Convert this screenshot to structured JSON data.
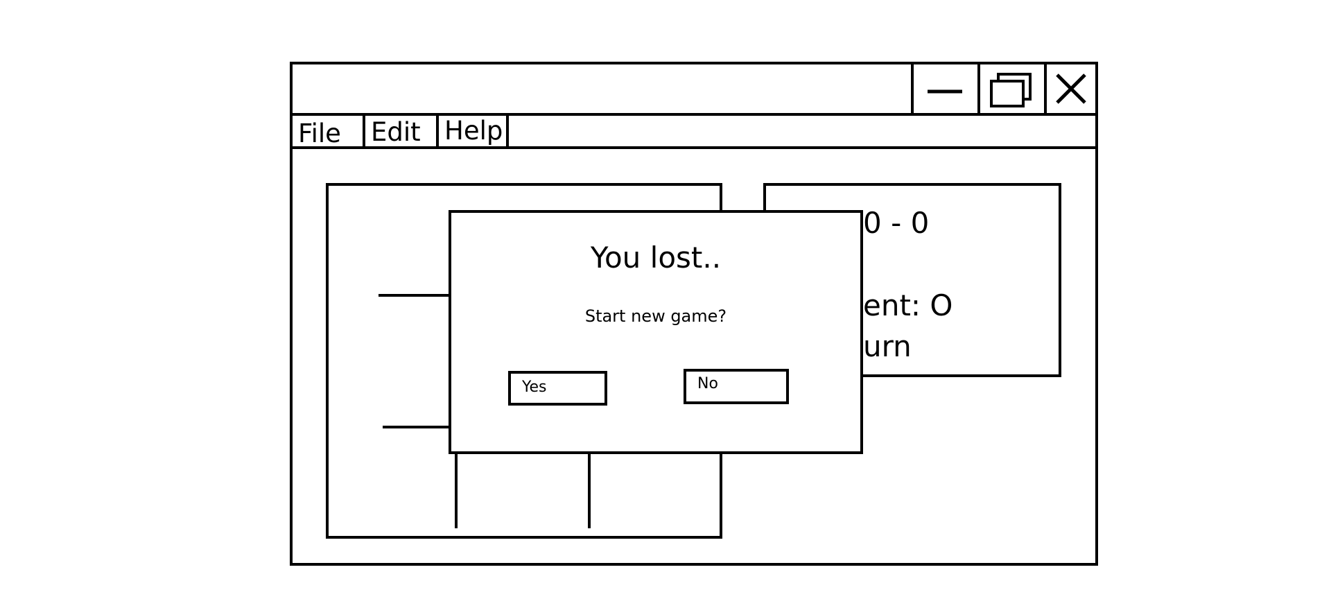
{
  "window": {
    "title": "",
    "controls": {
      "minimize_icon": "minimize-icon",
      "maximize_icon": "maximize-icon",
      "close_icon": "close-icon"
    }
  },
  "menu": {
    "items": [
      {
        "label": "File"
      },
      {
        "label": "Edit"
      },
      {
        "label": "Help"
      }
    ]
  },
  "info_panel": {
    "score": "0 - 0",
    "opponent": "ent: O",
    "turn": "urn"
  },
  "dialog": {
    "title": "You lost..",
    "message": "Start new game?",
    "yes_label": "Yes",
    "no_label": "No"
  }
}
